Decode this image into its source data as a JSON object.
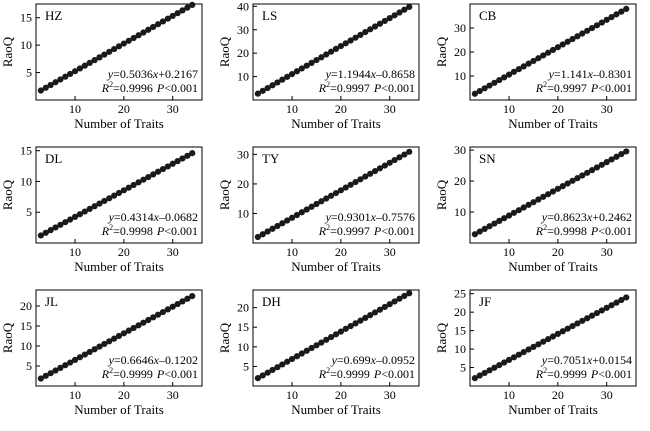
{
  "chart_data": [
    {
      "type": "scatter",
      "panel_label": "HZ",
      "xlabel": "Number of Traits",
      "ylabel": "RaoQ",
      "xlim": [
        2,
        36
      ],
      "ylim": [
        0,
        17.5
      ],
      "xticks": [
        10,
        20,
        30
      ],
      "yticks": [
        5,
        10,
        15
      ],
      "grid": false,
      "slope": 0.5036,
      "intercept": 0.2167,
      "x": [
        3,
        4,
        5,
        6,
        7,
        8,
        9,
        10,
        11,
        12,
        13,
        14,
        15,
        16,
        17,
        18,
        19,
        20,
        21,
        22,
        23,
        24,
        25,
        26,
        27,
        28,
        29,
        30,
        31,
        32,
        33,
        34
      ],
      "eq_y": "y",
      "eq_eq": "=0.5036",
      "eq_x": "x",
      "eq_rest": "+0.2167",
      "r2_r": "R",
      "r2_sup": "2",
      "r2_val": "=0.9996",
      "r2_p": "P",
      "r2_pval": "<0.001"
    },
    {
      "type": "scatter",
      "panel_label": "LS",
      "xlabel": "Number of Traits",
      "ylabel": "RaoQ",
      "xlim": [
        2,
        36
      ],
      "ylim": [
        0,
        41
      ],
      "xticks": [
        10,
        20,
        30
      ],
      "yticks": [
        10,
        20,
        30,
        40
      ],
      "grid": false,
      "slope": 1.1944,
      "intercept": -0.8658,
      "x": [
        3,
        4,
        5,
        6,
        7,
        8,
        9,
        10,
        11,
        12,
        13,
        14,
        15,
        16,
        17,
        18,
        19,
        20,
        21,
        22,
        23,
        24,
        25,
        26,
        27,
        28,
        29,
        30,
        31,
        32,
        33,
        34
      ],
      "eq_y": "y",
      "eq_eq": "=1.1944",
      "eq_x": "x",
      "eq_rest": "–0.8658",
      "r2_r": "R",
      "r2_sup": "2",
      "r2_val": "=0.9997",
      "r2_p": "P",
      "r2_pval": "<0.001"
    },
    {
      "type": "scatter",
      "panel_label": "CB",
      "xlabel": "Number of Traits",
      "ylabel": "RaoQ",
      "xlim": [
        2,
        36
      ],
      "ylim": [
        0,
        40
      ],
      "xticks": [
        10,
        20,
        30
      ],
      "yticks": [
        10,
        20,
        30
      ],
      "grid": false,
      "slope": 1.141,
      "intercept": -0.8301,
      "x": [
        3,
        4,
        5,
        6,
        7,
        8,
        9,
        10,
        11,
        12,
        13,
        14,
        15,
        16,
        17,
        18,
        19,
        20,
        21,
        22,
        23,
        24,
        25,
        26,
        27,
        28,
        29,
        30,
        31,
        32,
        33,
        34
      ],
      "eq_y": "y",
      "eq_eq": "=1.141",
      "eq_x": "x",
      "eq_rest": "–0.8301",
      "r2_r": "R",
      "r2_sup": "2",
      "r2_val": "=0.9997",
      "r2_p": "P",
      "r2_pval": "<0.001"
    },
    {
      "type": "scatter",
      "panel_label": "DL",
      "xlabel": "Number of Traits",
      "ylabel": "RaoQ",
      "xlim": [
        2,
        36
      ],
      "ylim": [
        0,
        15.6
      ],
      "xticks": [
        10,
        20,
        30
      ],
      "yticks": [
        5,
        10,
        15
      ],
      "grid": false,
      "slope": 0.4314,
      "intercept": -0.0682,
      "x": [
        3,
        4,
        5,
        6,
        7,
        8,
        9,
        10,
        11,
        12,
        13,
        14,
        15,
        16,
        17,
        18,
        19,
        20,
        21,
        22,
        23,
        24,
        25,
        26,
        27,
        28,
        29,
        30,
        31,
        32,
        33,
        34
      ],
      "eq_y": "y",
      "eq_eq": "=0.4314",
      "eq_x": "x",
      "eq_rest": "–0.0682",
      "r2_r": "R",
      "r2_sup": "2",
      "r2_val": "=0.9998",
      "r2_p": "P",
      "r2_pval": "<0.001"
    },
    {
      "type": "scatter",
      "panel_label": "TY",
      "xlabel": "Number of Traits",
      "ylabel": "RaoQ",
      "xlim": [
        2,
        36
      ],
      "ylim": [
        0,
        32.5
      ],
      "xticks": [
        10,
        20,
        30
      ],
      "yticks": [
        10,
        20,
        30
      ],
      "grid": false,
      "slope": 0.9301,
      "intercept": -0.7576,
      "x": [
        3,
        4,
        5,
        6,
        7,
        8,
        9,
        10,
        11,
        12,
        13,
        14,
        15,
        16,
        17,
        18,
        19,
        20,
        21,
        22,
        23,
        24,
        25,
        26,
        27,
        28,
        29,
        30,
        31,
        32,
        33,
        34
      ],
      "eq_y": "y",
      "eq_eq": "=0.9301",
      "eq_x": "x",
      "eq_rest": "–0.7576",
      "r2_r": "R",
      "r2_sup": "2",
      "r2_val": "=0.9997",
      "r2_p": "P",
      "r2_pval": "<0.001"
    },
    {
      "type": "scatter",
      "panel_label": "SN",
      "xlabel": "Number of Traits",
      "ylabel": "RaoQ",
      "xlim": [
        2,
        36
      ],
      "ylim": [
        0,
        31
      ],
      "xticks": [
        10,
        20,
        30
      ],
      "yticks": [
        10,
        20,
        30
      ],
      "grid": false,
      "slope": 0.8623,
      "intercept": 0.2462,
      "x": [
        3,
        4,
        5,
        6,
        7,
        8,
        9,
        10,
        11,
        12,
        13,
        14,
        15,
        16,
        17,
        18,
        19,
        20,
        21,
        22,
        23,
        24,
        25,
        26,
        27,
        28,
        29,
        30,
        31,
        32,
        33,
        34
      ],
      "eq_y": "y",
      "eq_eq": "=0.8623",
      "eq_x": "x",
      "eq_rest": "+0.2462",
      "r2_r": "R",
      "r2_sup": "2",
      "r2_val": "=0.9998",
      "r2_p": "P",
      "r2_pval": "<0.001"
    },
    {
      "type": "scatter",
      "panel_label": "JL",
      "xlabel": "Number of Traits",
      "ylabel": "RaoQ",
      "xlim": [
        2,
        36
      ],
      "ylim": [
        0,
        24
      ],
      "xticks": [
        10,
        20,
        30
      ],
      "yticks": [
        5,
        10,
        15,
        20
      ],
      "grid": false,
      "slope": 0.6646,
      "intercept": -0.1202,
      "x": [
        3,
        4,
        5,
        6,
        7,
        8,
        9,
        10,
        11,
        12,
        13,
        14,
        15,
        16,
        17,
        18,
        19,
        20,
        21,
        22,
        23,
        24,
        25,
        26,
        27,
        28,
        29,
        30,
        31,
        32,
        33,
        34
      ],
      "eq_y": "y",
      "eq_eq": "=0.6646",
      "eq_x": "x",
      "eq_rest": "–0.1202",
      "r2_r": "R",
      "r2_sup": "2",
      "r2_val": "=0.9999",
      "r2_p": "P",
      "r2_pval": "<0.001"
    },
    {
      "type": "scatter",
      "panel_label": "DH",
      "xlabel": "Number of Traits",
      "ylabel": "RaoQ",
      "xlim": [
        2,
        36
      ],
      "ylim": [
        0,
        24.5
      ],
      "xticks": [
        10,
        20,
        30
      ],
      "yticks": [
        5,
        10,
        15,
        20
      ],
      "grid": false,
      "slope": 0.699,
      "intercept": -0.0952,
      "x": [
        3,
        4,
        5,
        6,
        7,
        8,
        9,
        10,
        11,
        12,
        13,
        14,
        15,
        16,
        17,
        18,
        19,
        20,
        21,
        22,
        23,
        24,
        25,
        26,
        27,
        28,
        29,
        30,
        31,
        32,
        33,
        34
      ],
      "eq_y": "y",
      "eq_eq": "=0.699",
      "eq_x": "x",
      "eq_rest": "–0.0952",
      "r2_r": "R",
      "r2_sup": "2",
      "r2_val": "=0.9999",
      "r2_p": "P",
      "r2_pval": "<0.001"
    },
    {
      "type": "scatter",
      "panel_label": "JF",
      "xlabel": "Number of Traits",
      "ylabel": "RaoQ",
      "xlim": [
        2,
        36
      ],
      "ylim": [
        0,
        26
      ],
      "xticks": [
        10,
        20,
        30
      ],
      "yticks": [
        5,
        10,
        15,
        20,
        25
      ],
      "grid": false,
      "slope": 0.7051,
      "intercept": 0.0154,
      "x": [
        3,
        4,
        5,
        6,
        7,
        8,
        9,
        10,
        11,
        12,
        13,
        14,
        15,
        16,
        17,
        18,
        19,
        20,
        21,
        22,
        23,
        24,
        25,
        26,
        27,
        28,
        29,
        30,
        31,
        32,
        33,
        34
      ],
      "eq_y": "y",
      "eq_eq": "=0.7051",
      "eq_x": "x",
      "eq_rest": "+0.0154",
      "r2_r": "R",
      "r2_sup": "2",
      "r2_val": "=0.9999",
      "r2_p": "P",
      "r2_pval": "<0.001"
    }
  ]
}
